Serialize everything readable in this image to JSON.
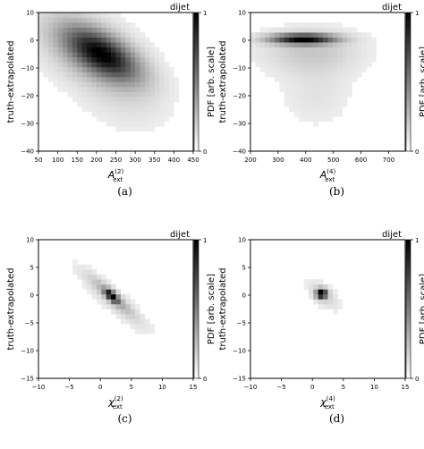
{
  "chart_data": [
    {
      "type": "heatmap",
      "tag": "dijet",
      "caption": "(a)",
      "xlabel": "A",
      "xlabel_sup": "(2)",
      "xlabel_sub": "ext",
      "ylabel": "truth-extrapolated",
      "cbar_label": "PDF [arb. scale]",
      "cbar_ticks": [
        "0",
        "1"
      ],
      "xlim": [
        50,
        450
      ],
      "ylim": [
        -40,
        10
      ],
      "xticks": [
        50,
        100,
        150,
        200,
        250,
        300,
        350,
        400,
        450
      ],
      "yticks": [
        -40,
        -30,
        -20,
        -10,
        0,
        10
      ],
      "blobs": [
        {
          "x": 215,
          "y": -5,
          "sx": 60,
          "sy": 6,
          "rho": -0.6,
          "peak": 1.0
        },
        {
          "x": 180,
          "y": -4,
          "sx": 80,
          "sy": 9,
          "rho": -0.5,
          "peak": 0.25
        },
        {
          "x": 270,
          "y": -18,
          "sx": 70,
          "sy": 9,
          "rho": -0.3,
          "peak": 0.06
        }
      ]
    },
    {
      "type": "heatmap",
      "tag": "dijet",
      "caption": "(b)",
      "xlabel": "A",
      "xlabel_sup": "(4)",
      "xlabel_sub": "ext",
      "ylabel": "truth-extrapolated",
      "cbar_label": "PDF [arb. scale]",
      "cbar_ticks": [
        "0",
        "1"
      ],
      "xlim": [
        200,
        760
      ],
      "ylim": [
        -40,
        10
      ],
      "xticks": [
        200,
        300,
        400,
        500,
        600,
        700
      ],
      "yticks": [
        -40,
        -30,
        -20,
        -10,
        0,
        10
      ],
      "blobs": [
        {
          "x": 390,
          "y": 0.5,
          "sx": 75,
          "sy": 1.2,
          "rho": 0.0,
          "peak": 1.0
        },
        {
          "x": 420,
          "y": -4,
          "sx": 110,
          "sy": 5,
          "rho": 0.0,
          "peak": 0.12
        },
        {
          "x": 440,
          "y": -18,
          "sx": 80,
          "sy": 8,
          "rho": 0.0,
          "peak": 0.04
        }
      ]
    },
    {
      "type": "heatmap",
      "tag": "dijet",
      "caption": "(c)",
      "xlabel": "χ",
      "xlabel_sup": "(2)",
      "xlabel_sub": "ext",
      "ylabel": "truth-extrapolated",
      "cbar_label": "PDF [arb. scale]",
      "cbar_ticks": [
        "0",
        "1"
      ],
      "xlim": [
        -10,
        15
      ],
      "ylim": [
        -15,
        10
      ],
      "xticks": [
        -10,
        -5,
        0,
        5,
        10,
        15
      ],
      "yticks": [
        -15,
        -10,
        -5,
        0,
        5,
        10
      ],
      "blobs": [
        {
          "x": 1.5,
          "y": 0.3,
          "sx": 0.6,
          "sy": 0.6,
          "rho": -0.5,
          "peak": 1.0
        },
        {
          "x": 2.2,
          "y": -0.6,
          "sx": 0.6,
          "sy": 0.6,
          "rho": -0.5,
          "peak": 0.8
        },
        {
          "x": 2,
          "y": -0.3,
          "sx": 2.2,
          "sy": 2.2,
          "rho": -0.92,
          "peak": 0.35
        },
        {
          "x": 2,
          "y": -0.8,
          "sx": 3.5,
          "sy": 3.5,
          "rho": -0.9,
          "peak": 0.1
        }
      ]
    },
    {
      "type": "heatmap",
      "tag": "dijet",
      "caption": "(d)",
      "xlabel": "χ",
      "xlabel_sup": "(4)",
      "xlabel_sub": "ext",
      "ylabel": "truth-extrapolated",
      "cbar_label": "PDF [arb. scale]",
      "cbar_ticks": [
        "0",
        "1"
      ],
      "xlim": [
        -10,
        15
      ],
      "ylim": [
        -15,
        10
      ],
      "xticks": [
        -10,
        -5,
        0,
        5,
        10,
        15
      ],
      "yticks": [
        -15,
        -10,
        -5,
        0,
        5,
        10
      ],
      "blobs": [
        {
          "x": 1.5,
          "y": 0.3,
          "sx": 0.55,
          "sy": 0.55,
          "rho": 0.0,
          "peak": 1.0
        },
        {
          "x": 1.8,
          "y": 0.0,
          "sx": 1.5,
          "sy": 1.5,
          "rho": -0.6,
          "peak": 0.08
        }
      ]
    }
  ]
}
